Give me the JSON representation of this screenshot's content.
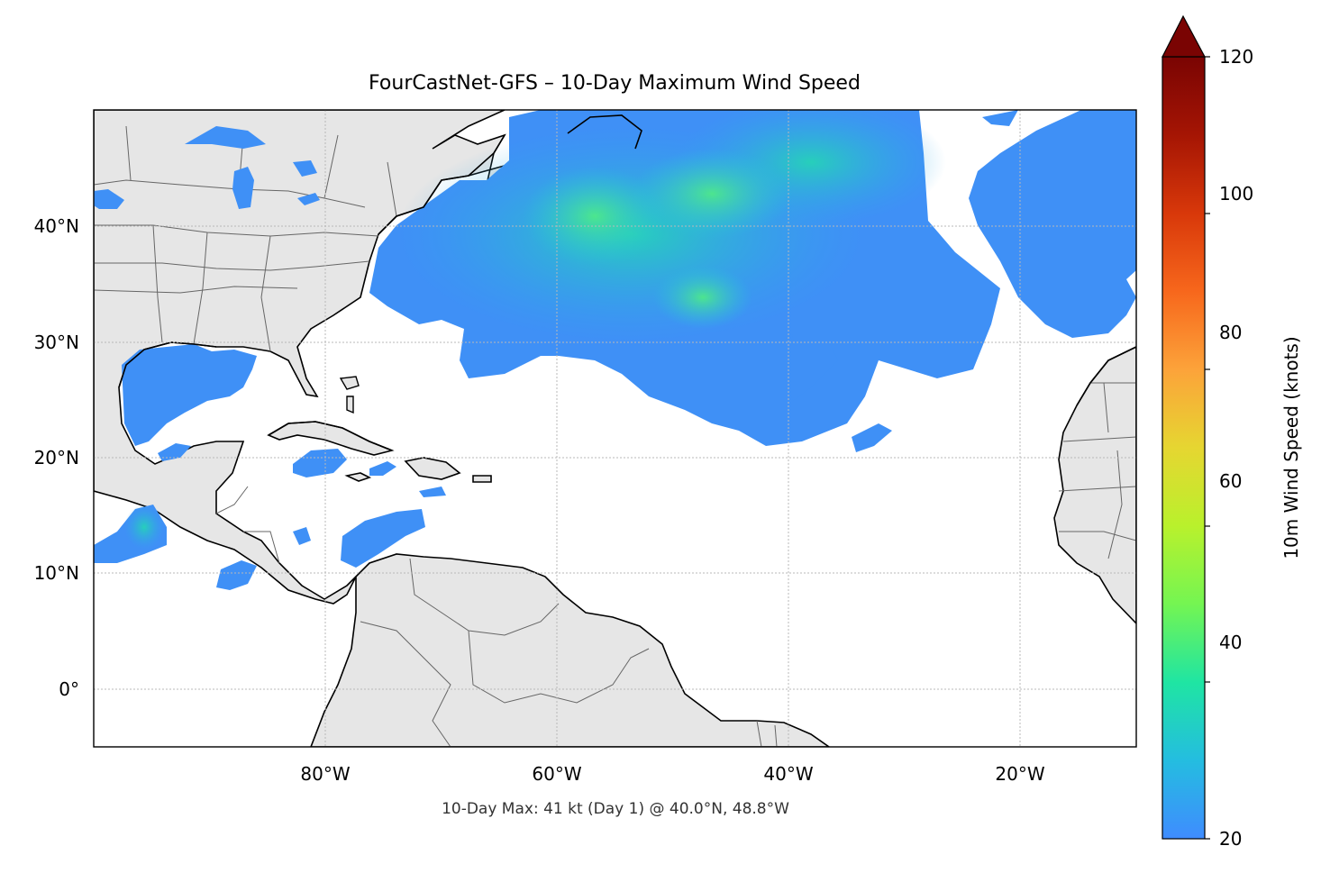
{
  "map": {
    "title": "FourCastNet-GFS – 10-Day Maximum Wind Speed",
    "footer_note": "10-Day Max: 41 kt (Day 1) @ 40.0°N, 48.8°W",
    "lon_range": [
      -100,
      -10
    ],
    "lat_range": [
      -5,
      50
    ],
    "lat_ticks": [
      {
        "value": 40,
        "label": "40°N"
      },
      {
        "value": 30,
        "label": "30°N"
      },
      {
        "value": 20,
        "label": "20°N"
      },
      {
        "value": 10,
        "label": "10°N"
      },
      {
        "value": 0,
        "label": "0°"
      }
    ],
    "lon_ticks": [
      {
        "value": -80,
        "label": "80°W"
      },
      {
        "value": -60,
        "label": "60°W"
      },
      {
        "value": -40,
        "label": "40°W"
      },
      {
        "value": -20,
        "label": "20°W"
      }
    ],
    "gridlines": true,
    "max_point": {
      "lat": 40.0,
      "lon": -48.8,
      "value_kt": 41,
      "day": 1
    }
  },
  "colorbar": {
    "label": "10m Wind Speed (knots)",
    "min": 20,
    "max": 120,
    "extend": "max",
    "ticks": [
      {
        "value": 20,
        "label": "20"
      },
      {
        "value": 40,
        "label": "40"
      },
      {
        "value": 60,
        "label": "60"
      },
      {
        "value": 80,
        "label": "80"
      },
      {
        "value": 100,
        "label": "100"
      },
      {
        "value": 120,
        "label": "120"
      }
    ],
    "colormap": [
      "#3f8cff",
      "#24bde0",
      "#1fe5a3",
      "#74f552",
      "#b9f12c",
      "#e6d631",
      "#fca33a",
      "#f7671c",
      "#d8380a",
      "#a51504",
      "#7a0403"
    ]
  },
  "colors": {
    "land": "#e6e6e6",
    "coast": "#000000",
    "borders": "#666666",
    "grid": "#b8b8b8",
    "wind_low": "#3f90f6",
    "wind_mid": "#27c4dc",
    "wind_high": "#3ae38f"
  }
}
